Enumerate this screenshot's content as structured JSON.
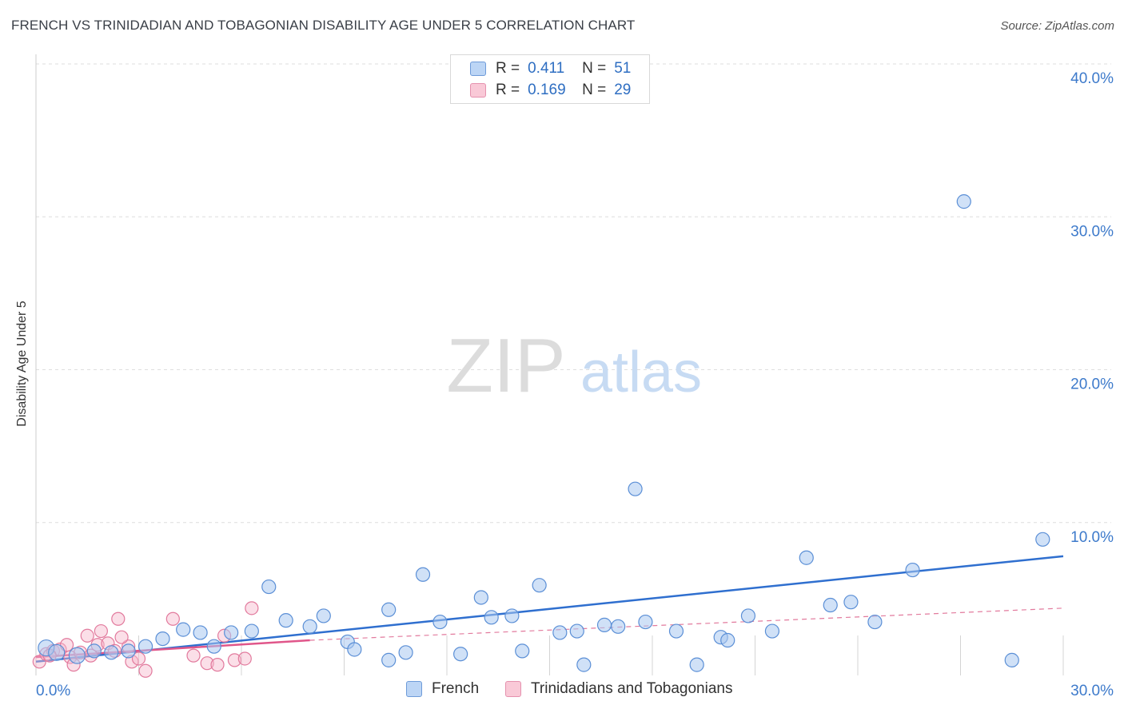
{
  "title": "FRENCH VS TRINIDADIAN AND TOBAGONIAN DISABILITY AGE UNDER 5 CORRELATION CHART",
  "source": "Source: ZipAtlas.com",
  "watermark": {
    "zip": "ZIP",
    "atlas": "atlas"
  },
  "legend": {
    "r_label": "R =",
    "n_label": "N =",
    "french": {
      "r": "0.411",
      "n": "51",
      "color": "#a9c8f0"
    },
    "trini": {
      "r": "0.169",
      "n": "29",
      "color": "#f7b8cb"
    }
  },
  "bottom_legend": {
    "french": "French",
    "trini": "Trinidadians and Tobagonians"
  },
  "chart_data": {
    "type": "scatter",
    "title": "FRENCH VS TRINIDADIAN AND TOBAGONIAN DISABILITY AGE UNDER 5 CORRELATION CHART",
    "xlabel": "",
    "ylabel": "Disability Age Under 5",
    "xlim": [
      0,
      30
    ],
    "ylim": [
      0,
      40
    ],
    "x_tick_labels": [
      "0.0%",
      "30.0%"
    ],
    "y_ticks": [
      10,
      20,
      30,
      40
    ],
    "y_tick_labels": [
      "10.0%",
      "20.0%",
      "30.0%",
      "40.0%"
    ],
    "grid": true,
    "series": [
      {
        "name": "French",
        "color": "#a9c8f0",
        "stroke": "#5b8fd6",
        "points": [
          [
            0.3,
            1.8
          ],
          [
            0.6,
            1.5
          ],
          [
            1.2,
            1.3
          ],
          [
            1.7,
            1.6
          ],
          [
            2.2,
            1.5
          ],
          [
            2.7,
            1.6
          ],
          [
            3.2,
            1.9
          ],
          [
            3.7,
            2.4
          ],
          [
            4.3,
            3.0
          ],
          [
            4.8,
            2.8
          ],
          [
            5.2,
            1.9
          ],
          [
            5.7,
            2.8
          ],
          [
            6.3,
            2.9
          ],
          [
            6.8,
            5.8
          ],
          [
            7.3,
            3.6
          ],
          [
            8.0,
            3.2
          ],
          [
            8.4,
            3.9
          ],
          [
            9.1,
            2.2
          ],
          [
            9.3,
            1.7
          ],
          [
            10.3,
            1.0
          ],
          [
            10.3,
            4.3
          ],
          [
            10.8,
            1.5
          ],
          [
            11.3,
            6.6
          ],
          [
            11.8,
            3.5
          ],
          [
            12.4,
            1.4
          ],
          [
            13.0,
            5.1
          ],
          [
            13.3,
            3.8
          ],
          [
            13.9,
            3.9
          ],
          [
            14.2,
            1.6
          ],
          [
            14.7,
            5.9
          ],
          [
            15.3,
            2.8
          ],
          [
            15.8,
            2.9
          ],
          [
            16.0,
            0.7
          ],
          [
            16.6,
            3.3
          ],
          [
            17.0,
            3.2
          ],
          [
            17.5,
            12.2
          ],
          [
            17.8,
            3.5
          ],
          [
            18.7,
            2.9
          ],
          [
            19.3,
            0.7
          ],
          [
            20.0,
            2.5
          ],
          [
            20.2,
            2.3
          ],
          [
            20.8,
            3.9
          ],
          [
            21.5,
            2.9
          ],
          [
            22.5,
            7.7
          ],
          [
            23.2,
            4.6
          ],
          [
            23.8,
            4.8
          ],
          [
            24.5,
            3.5
          ],
          [
            25.6,
            6.9
          ],
          [
            27.1,
            31.0
          ],
          [
            28.5,
            1.0
          ],
          [
            29.4,
            8.9
          ]
        ],
        "trend": {
          "x": [
            0.0,
            30.0
          ],
          "y": [
            0.9,
            7.8
          ]
        }
      },
      {
        "name": "Trinidadians and Tobagonians",
        "color": "#f7b8cb",
        "stroke": "#e27a9d",
        "points": [
          [
            0.1,
            0.9
          ],
          [
            0.3,
            1.4
          ],
          [
            0.5,
            1.6
          ],
          [
            0.7,
            1.7
          ],
          [
            0.9,
            2.0
          ],
          [
            1.0,
            1.2
          ],
          [
            1.1,
            0.7
          ],
          [
            1.3,
            1.5
          ],
          [
            1.5,
            2.6
          ],
          [
            1.6,
            1.3
          ],
          [
            1.8,
            2.0
          ],
          [
            2.1,
            2.1
          ],
          [
            2.3,
            1.6
          ],
          [
            2.7,
            1.9
          ],
          [
            2.8,
            0.9
          ],
          [
            3.0,
            1.1
          ],
          [
            1.9,
            2.9
          ],
          [
            2.5,
            2.5
          ],
          [
            3.2,
            0.3
          ],
          [
            4.0,
            3.7
          ],
          [
            4.6,
            1.3
          ],
          [
            5.0,
            0.8
          ],
          [
            5.5,
            2.6
          ],
          [
            5.8,
            1.0
          ],
          [
            6.1,
            1.1
          ],
          [
            6.3,
            4.4
          ],
          [
            0.4,
            1.3
          ],
          [
            2.4,
            3.7
          ],
          [
            5.3,
            0.7
          ]
        ],
        "trend": {
          "x": [
            0.0,
            8.0
          ],
          "y": [
            1.2,
            2.3
          ]
        },
        "trend_ext": {
          "x": [
            8.0,
            30.0
          ],
          "y": [
            2.3,
            4.4
          ]
        }
      }
    ]
  }
}
